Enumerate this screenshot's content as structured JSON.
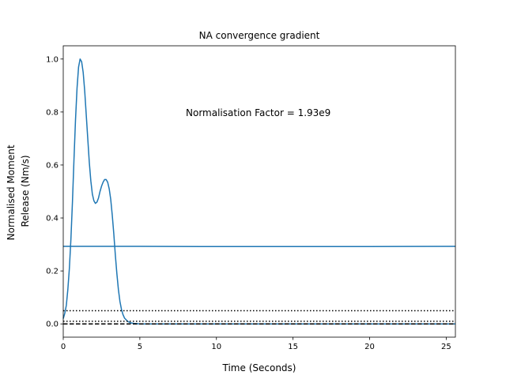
{
  "chart_data": {
    "type": "line",
    "title": "NA convergence gradient",
    "xlabel": "Time (Seconds)",
    "ylabel_lines": [
      "Normalised Moment",
      "Release (Nm/s)"
    ],
    "xlim": [
      0,
      25.6
    ],
    "ylim": [
      -0.05,
      1.05
    ],
    "xticks": [
      0,
      5,
      10,
      15,
      20,
      25
    ],
    "yticks": [
      0.0,
      0.2,
      0.4,
      0.6,
      0.8,
      1.0
    ],
    "xtick_labels": [
      "0",
      "5",
      "10",
      "15",
      "20",
      "25"
    ],
    "ytick_labels": [
      "0.0",
      "0.2",
      "0.4",
      "0.6",
      "0.8",
      "1.0"
    ],
    "annotation": {
      "text": "Normalisation Factor = 1.93e9",
      "x": 8.0,
      "y": 0.8
    },
    "series": [
      {
        "color": "#1f77b4",
        "style": "solid",
        "x": [
          0,
          0.1,
          0.2,
          0.3,
          0.4,
          0.5,
          0.6,
          0.7,
          0.8,
          0.9,
          1.0,
          1.1,
          1.2,
          1.3,
          1.4,
          1.5,
          1.6,
          1.7,
          1.8,
          1.9,
          2.0,
          2.1,
          2.2,
          2.3,
          2.4,
          2.5,
          2.6,
          2.7,
          2.8,
          2.9,
          3.0,
          3.1,
          3.2,
          3.3,
          3.4,
          3.5,
          3.6,
          3.7,
          3.8,
          3.9,
          4.0,
          4.2,
          4.4,
          4.6,
          4.8,
          5.0,
          5.5,
          6.0,
          8.0,
          10.0,
          15.0,
          20.0,
          25.6
        ],
        "y": [
          0.02,
          0.04,
          0.07,
          0.13,
          0.21,
          0.32,
          0.46,
          0.62,
          0.77,
          0.89,
          0.97,
          1.0,
          0.99,
          0.95,
          0.88,
          0.79,
          0.7,
          0.61,
          0.54,
          0.49,
          0.465,
          0.455,
          0.46,
          0.475,
          0.5,
          0.52,
          0.535,
          0.545,
          0.545,
          0.535,
          0.51,
          0.47,
          0.41,
          0.34,
          0.26,
          0.19,
          0.13,
          0.085,
          0.055,
          0.035,
          0.022,
          0.01,
          0.004,
          0.002,
          0.001,
          0.0,
          0.0,
          0.0,
          0.0,
          0.0,
          0.0,
          0.0,
          0.0
        ]
      },
      {
        "color": "#1f77b4",
        "style": "solid",
        "x": [
          0,
          5,
          10,
          15,
          20,
          25.6
        ],
        "y": [
          0.293,
          0.293,
          0.292,
          0.292,
          0.292,
          0.293
        ]
      },
      {
        "color": "#000000",
        "style": "dotted",
        "x": [
          0,
          25.6
        ],
        "y": [
          0.05,
          0.05
        ]
      },
      {
        "color": "#000000",
        "style": "dashed",
        "x": [
          0,
          25.6
        ],
        "y": [
          0.0,
          0.0
        ]
      },
      {
        "color": "#000000",
        "style": "dotted",
        "x": [
          0,
          25.6
        ],
        "y": [
          0.01,
          0.01
        ]
      }
    ]
  }
}
